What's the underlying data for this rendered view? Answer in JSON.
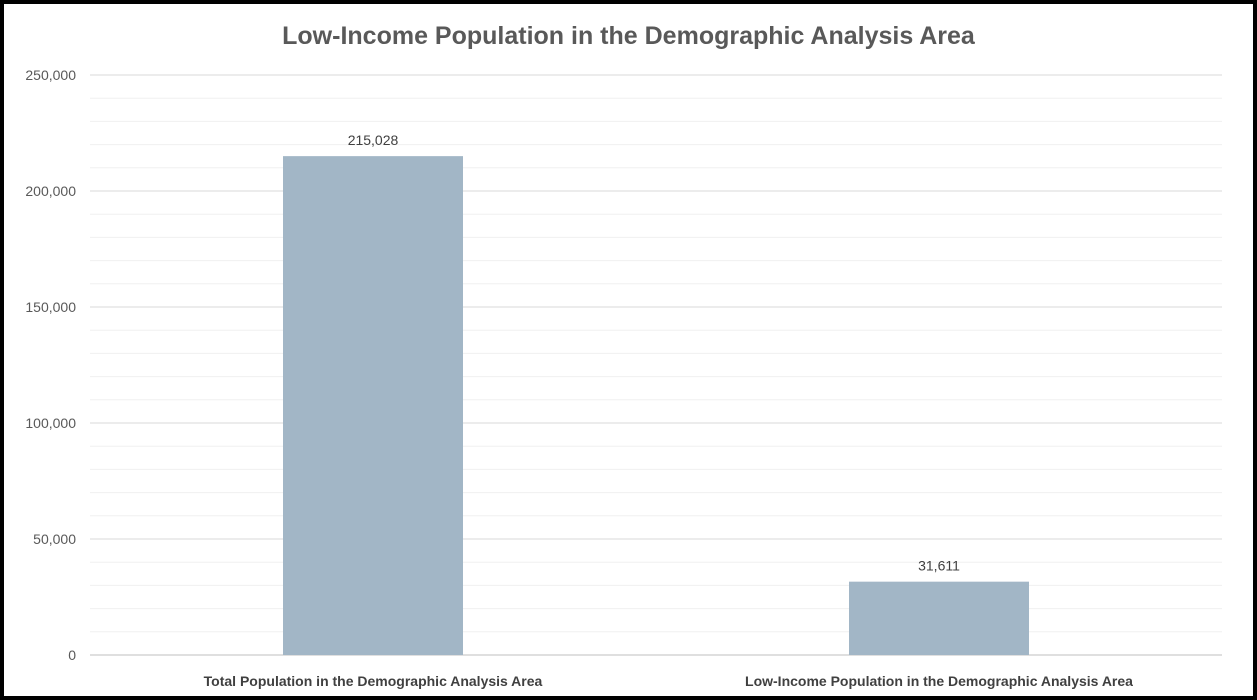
{
  "chart_data": {
    "type": "bar",
    "title": "Low-Income Population in the Demographic Analysis Area",
    "categories": [
      "Total Population in the Demographic Analysis Area",
      "Low-Income Population in the Demographic Analysis Area"
    ],
    "values": [
      215028,
      31611
    ],
    "data_labels": [
      "215,028",
      "31,611"
    ],
    "xlabel": "",
    "ylabel": "",
    "ylim": [
      0,
      250000
    ],
    "yticks": [
      0,
      50000,
      100000,
      150000,
      200000,
      250000
    ],
    "ytick_labels": [
      "0",
      "50,000",
      "100,000",
      "150,000",
      "200,000",
      "250,000"
    ],
    "grid": true,
    "minor_grid": true,
    "legend": "none",
    "colors": {
      "bar": "#a2b6c6",
      "gridline": "#d9d9d9",
      "minor_gridline": "#f0f0f0",
      "text": "#595959",
      "frame": "#000000"
    }
  }
}
